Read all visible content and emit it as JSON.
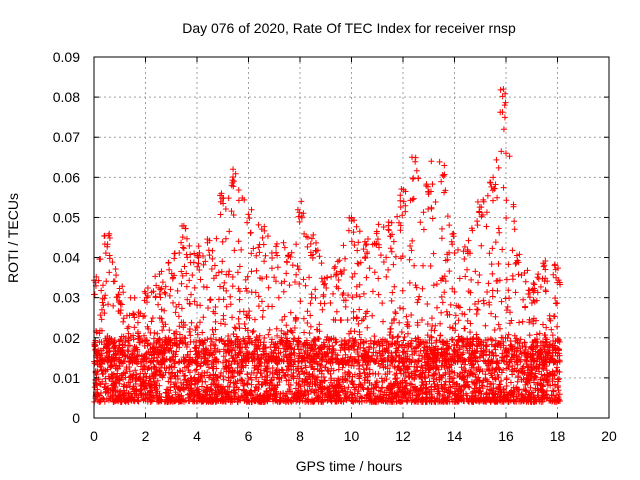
{
  "chart_data": {
    "type": "scatter",
    "title": "Day 076 of 2020, Rate Of TEC Index for receiver rnsp",
    "xlabel": "GPS time / hours",
    "ylabel": "ROTI / TECUs",
    "xlim": [
      0,
      20
    ],
    "ylim": [
      0,
      0.09
    ],
    "xticks": [
      "0",
      "2",
      "4",
      "6",
      "8",
      "10",
      "12",
      "14",
      "16",
      "18",
      "20"
    ],
    "yticks": [
      "0",
      "0.01",
      "0.02",
      "0.03",
      "0.04",
      "0.05",
      "0.06",
      "0.07",
      "0.08",
      "0.09"
    ],
    "grid": true,
    "marker": "+",
    "color": "#ff0000",
    "series": [
      {
        "name": "ROTI",
        "x_range_hours": [
          0,
          18.1
        ],
        "typical_range": [
          0.004,
          0.02
        ],
        "hourly_peak_envelope": [
          {
            "x": 0.0,
            "y": 0.036
          },
          {
            "x": 0.5,
            "y": 0.046
          },
          {
            "x": 1.0,
            "y": 0.033
          },
          {
            "x": 1.5,
            "y": 0.03
          },
          {
            "x": 2.0,
            "y": 0.033
          },
          {
            "x": 2.5,
            "y": 0.036
          },
          {
            "x": 3.0,
            "y": 0.04
          },
          {
            "x": 3.5,
            "y": 0.048
          },
          {
            "x": 4.0,
            "y": 0.044
          },
          {
            "x": 4.5,
            "y": 0.045
          },
          {
            "x": 5.0,
            "y": 0.056
          },
          {
            "x": 5.5,
            "y": 0.062
          },
          {
            "x": 6.0,
            "y": 0.052
          },
          {
            "x": 6.5,
            "y": 0.048
          },
          {
            "x": 7.0,
            "y": 0.045
          },
          {
            "x": 7.5,
            "y": 0.044
          },
          {
            "x": 8.0,
            "y": 0.054
          },
          {
            "x": 8.5,
            "y": 0.046
          },
          {
            "x": 9.0,
            "y": 0.037
          },
          {
            "x": 9.5,
            "y": 0.04
          },
          {
            "x": 10.0,
            "y": 0.05
          },
          {
            "x": 10.5,
            "y": 0.045
          },
          {
            "x": 11.0,
            "y": 0.049
          },
          {
            "x": 11.5,
            "y": 0.05
          },
          {
            "x": 12.0,
            "y": 0.059
          },
          {
            "x": 12.5,
            "y": 0.065
          },
          {
            "x": 13.0,
            "y": 0.058
          },
          {
            "x": 13.5,
            "y": 0.064
          },
          {
            "x": 14.0,
            "y": 0.046
          },
          {
            "x": 14.5,
            "y": 0.045
          },
          {
            "x": 15.0,
            "y": 0.054
          },
          {
            "x": 15.5,
            "y": 0.06
          },
          {
            "x": 15.9,
            "y": 0.082
          },
          {
            "x": 16.5,
            "y": 0.041
          },
          {
            "x": 17.0,
            "y": 0.035
          },
          {
            "x": 17.5,
            "y": 0.04
          },
          {
            "x": 18.0,
            "y": 0.039
          }
        ],
        "notable_points": [
          {
            "x": 15.9,
            "y": 0.082
          },
          {
            "x": 15.95,
            "y": 0.078
          },
          {
            "x": 15.92,
            "y": 0.072
          },
          {
            "x": 16.0,
            "y": 0.066
          },
          {
            "x": 12.35,
            "y": 0.065
          },
          {
            "x": 13.1,
            "y": 0.064
          },
          {
            "x": 5.4,
            "y": 0.062
          },
          {
            "x": 15.5,
            "y": 0.06
          },
          {
            "x": 5.35,
            "y": 0.058
          },
          {
            "x": 4.95,
            "y": 0.056
          },
          {
            "x": 8.05,
            "y": 0.054
          },
          {
            "x": 10.0,
            "y": 0.05
          }
        ]
      }
    ]
  }
}
